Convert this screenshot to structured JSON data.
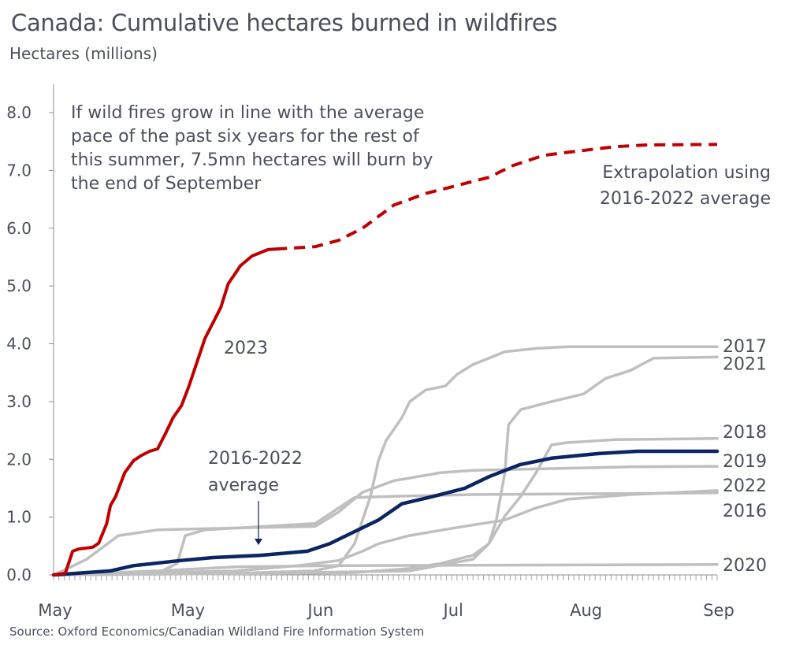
{
  "chart_data": {
    "type": "line",
    "title": "Canada: Cumulative hectares burned in wildfires",
    "subtitle": "Hectares (millions)",
    "source": "Source: Oxford Economics/Canadian Wildland Fire Information System",
    "xlabel": "",
    "ylabel": "Hectares (millions)",
    "ylim": [
      0,
      8
    ],
    "xlim": [
      0,
      125
    ],
    "x_unit": "days since start of May",
    "yticks": [
      "0.0",
      "1.0",
      "2.0",
      "3.0",
      "4.0",
      "5.0",
      "6.0",
      "7.0",
      "8.0"
    ],
    "xticks": [
      {
        "x": 0,
        "label": "May"
      },
      {
        "x": 25,
        "label": "May"
      },
      {
        "x": 50,
        "label": "Jun"
      },
      {
        "x": 75,
        "label": "Jul"
      },
      {
        "x": 100,
        "label": "Aug"
      },
      {
        "x": 125,
        "label": "Sep"
      }
    ],
    "grid": false,
    "colors": {
      "y2023": "#c00000",
      "average": "#0c2461",
      "past": "#bfbfbf",
      "text": "#4a505b"
    },
    "series": [
      {
        "name": "2017",
        "style": "past",
        "label": "2017",
        "points": [
          [
            0,
            0
          ],
          [
            35,
            0.03
          ],
          [
            49,
            0.07
          ],
          [
            53.7,
            0.16
          ],
          [
            56.7,
            0.54
          ],
          [
            59.7,
            1.36
          ],
          [
            61.2,
            1.98
          ],
          [
            62.6,
            2.32
          ],
          [
            64.1,
            2.52
          ],
          [
            65.6,
            2.72
          ],
          [
            67.1,
            3.0
          ],
          [
            70.1,
            3.2
          ],
          [
            73.8,
            3.27
          ],
          [
            76,
            3.47
          ],
          [
            79,
            3.64
          ],
          [
            82,
            3.75
          ],
          [
            84.9,
            3.86
          ],
          [
            90.9,
            3.92
          ],
          [
            96.8,
            3.95
          ],
          [
            125,
            3.95
          ]
        ]
      },
      {
        "name": "2021",
        "style": "past",
        "label": "2021",
        "points": [
          [
            0,
            0
          ],
          [
            40,
            0.03
          ],
          [
            67,
            0.07
          ],
          [
            79,
            0.27
          ],
          [
            82,
            0.54
          ],
          [
            83.4,
            0.95
          ],
          [
            85,
            1.77
          ],
          [
            85.7,
            2.6
          ],
          [
            88,
            2.86
          ],
          [
            93.8,
            3.0
          ],
          [
            99.8,
            3.13
          ],
          [
            104,
            3.4
          ],
          [
            108.7,
            3.54
          ],
          [
            113,
            3.75
          ],
          [
            125,
            3.77
          ]
        ]
      },
      {
        "name": "2018",
        "style": "past",
        "label": "2018",
        "points": [
          [
            0,
            0
          ],
          [
            49,
            0.03
          ],
          [
            56.7,
            0.04
          ],
          [
            67,
            0.11
          ],
          [
            73,
            0.2
          ],
          [
            79,
            0.34
          ],
          [
            82,
            0.54
          ],
          [
            85,
            1.02
          ],
          [
            88,
            1.36
          ],
          [
            90.9,
            1.77
          ],
          [
            93.8,
            2.25
          ],
          [
            96.8,
            2.29
          ],
          [
            105.7,
            2.34
          ],
          [
            125,
            2.36
          ]
        ]
      },
      {
        "name": "2019",
        "style": "past",
        "label": "2019",
        "points": [
          [
            0,
            0
          ],
          [
            3.3,
            0.14
          ],
          [
            6.2,
            0.27
          ],
          [
            12.2,
            0.68
          ],
          [
            19.6,
            0.78
          ],
          [
            38.9,
            0.82
          ],
          [
            49.3,
            0.84
          ],
          [
            53.7,
            1.09
          ],
          [
            58.2,
            1.43
          ],
          [
            64.1,
            1.63
          ],
          [
            73,
            1.77
          ],
          [
            79,
            1.81
          ],
          [
            93.8,
            1.84
          ],
          [
            108.7,
            1.87
          ],
          [
            125,
            1.88
          ]
        ]
      },
      {
        "name": "2022",
        "style": "past",
        "label": "2022",
        "points": [
          [
            0,
            0
          ],
          [
            19.6,
            0.03
          ],
          [
            23.3,
            0.2
          ],
          [
            24.8,
            0.68
          ],
          [
            28.5,
            0.78
          ],
          [
            49.3,
            0.89
          ],
          [
            53.7,
            1.16
          ],
          [
            56.7,
            1.34
          ],
          [
            64.1,
            1.36
          ],
          [
            79,
            1.39
          ],
          [
            125,
            1.42
          ]
        ]
      },
      {
        "name": "2016",
        "style": "past",
        "label": "2016",
        "points": [
          [
            0,
            0
          ],
          [
            34.4,
            0.07
          ],
          [
            46,
            0.16
          ],
          [
            53.7,
            0.25
          ],
          [
            58.2,
            0.41
          ],
          [
            61.2,
            0.54
          ],
          [
            67,
            0.68
          ],
          [
            76,
            0.82
          ],
          [
            85,
            0.95
          ],
          [
            90.9,
            1.16
          ],
          [
            96.8,
            1.31
          ],
          [
            108.7,
            1.39
          ],
          [
            125,
            1.46
          ]
        ]
      },
      {
        "name": "2020",
        "style": "past",
        "label": "2020",
        "points": [
          [
            0,
            0
          ],
          [
            19.6,
            0.07
          ],
          [
            34.4,
            0.14
          ],
          [
            52,
            0.16
          ],
          [
            125,
            0.18
          ]
        ]
      },
      {
        "name": "2016-2022 average",
        "style": "average",
        "label": "",
        "points": [
          [
            0,
            0
          ],
          [
            10.7,
            0.07
          ],
          [
            15,
            0.16
          ],
          [
            24,
            0.25
          ],
          [
            30,
            0.3
          ],
          [
            39,
            0.34
          ],
          [
            47.8,
            0.41
          ],
          [
            52,
            0.54
          ],
          [
            56.7,
            0.75
          ],
          [
            61.2,
            0.95
          ],
          [
            65.6,
            1.23
          ],
          [
            71.6,
            1.36
          ],
          [
            77.5,
            1.5
          ],
          [
            82,
            1.7
          ],
          [
            87.9,
            1.91
          ],
          [
            93.8,
            2.02
          ],
          [
            102.7,
            2.1
          ],
          [
            110,
            2.14
          ],
          [
            125,
            2.14
          ]
        ]
      },
      {
        "name": "2023",
        "style": "y2023",
        "label": "",
        "points": [
          [
            0,
            0
          ],
          [
            2.2,
            0.03
          ],
          [
            3.6,
            0.41
          ],
          [
            4.8,
            0.45
          ],
          [
            7.4,
            0.48
          ],
          [
            8.5,
            0.55
          ],
          [
            10,
            0.89
          ],
          [
            10.7,
            1.2
          ],
          [
            11.7,
            1.36
          ],
          [
            13.4,
            1.77
          ],
          [
            15.1,
            1.98
          ],
          [
            16.6,
            2.07
          ],
          [
            18.1,
            2.14
          ],
          [
            19.6,
            2.18
          ],
          [
            21.1,
            2.45
          ],
          [
            22.5,
            2.72
          ],
          [
            24.1,
            2.93
          ],
          [
            25.5,
            3.27
          ],
          [
            27,
            3.68
          ],
          [
            28.5,
            4.09
          ],
          [
            30,
            4.36
          ],
          [
            31.5,
            4.63
          ],
          [
            32.9,
            5.04
          ],
          [
            35.2,
            5.35
          ],
          [
            37.4,
            5.52
          ],
          [
            40.4,
            5.63
          ],
          [
            41.9,
            5.64
          ]
        ]
      },
      {
        "name": "2023 extrapolation",
        "style": "extrapolation",
        "label": "",
        "points": [
          [
            41.9,
            5.64
          ],
          [
            49.3,
            5.68
          ],
          [
            53.7,
            5.79
          ],
          [
            58.2,
            6.0
          ],
          [
            64.1,
            6.4
          ],
          [
            70.1,
            6.6
          ],
          [
            76,
            6.74
          ],
          [
            82,
            6.88
          ],
          [
            86.4,
            7.08
          ],
          [
            92.3,
            7.26
          ],
          [
            98.3,
            7.33
          ],
          [
            105.7,
            7.41
          ],
          [
            111.6,
            7.44
          ],
          [
            125,
            7.45
          ]
        ]
      }
    ],
    "annotations": {
      "headline": [
        "If wild fires grow in line with the average",
        "pace of the past six years for the rest of",
        "this summer, 7.5mn hectares will burn by",
        "the end of September"
      ],
      "extrapolation": [
        "Extrapolation using",
        "2016-2022 average"
      ],
      "y2023": "2023",
      "average": [
        "2016-2022",
        "average"
      ]
    }
  }
}
